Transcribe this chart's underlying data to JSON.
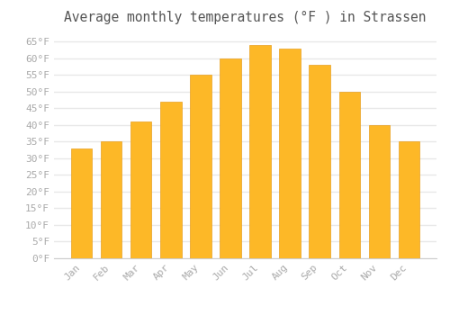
{
  "months": [
    "Jan",
    "Feb",
    "Mar",
    "Apr",
    "May",
    "Jun",
    "Jul",
    "Aug",
    "Sep",
    "Oct",
    "Nov",
    "Dec"
  ],
  "values": [
    33,
    35,
    41,
    47,
    55,
    60,
    64,
    63,
    58,
    50,
    40,
    35
  ],
  "bar_color": "#FDB827",
  "bar_edge_color": "#E8A020",
  "title": "Average monthly temperatures (°F ) in Strassen",
  "ylim": [
    0,
    68
  ],
  "ytick_step": 5,
  "background_color": "#ffffff",
  "grid_color": "#e8e8e8",
  "title_fontsize": 10.5,
  "tick_fontsize": 8,
  "tick_color": "#aaaaaa"
}
